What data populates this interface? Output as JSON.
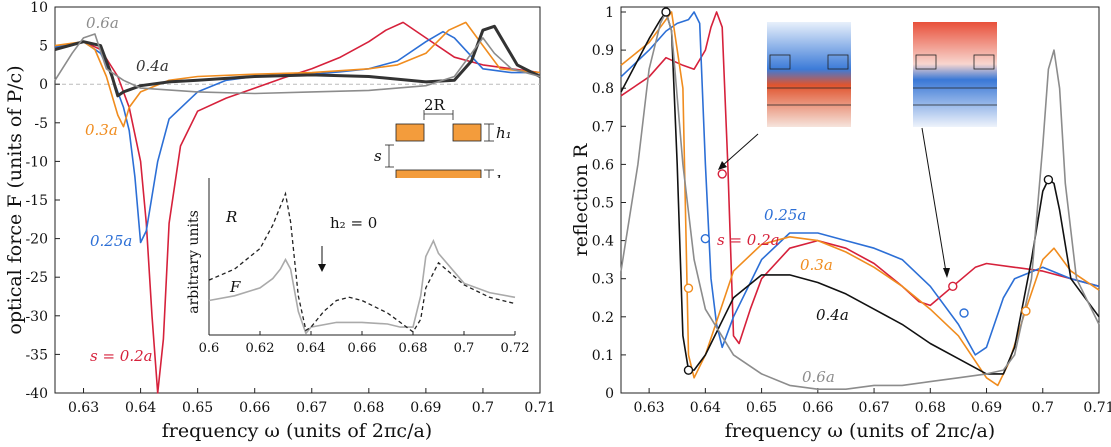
{
  "chart_data": [
    {
      "type": "line",
      "title": "",
      "xlabel": "frequency ω (units of 2πc/a)",
      "ylabel": "optical force  F (units of P/c)",
      "xlim": [
        0.625,
        0.71
      ],
      "ylim": [
        -40,
        10
      ],
      "xticks": [
        0.63,
        0.64,
        0.65,
        0.66,
        0.67,
        0.68,
        0.69,
        0.7,
        0.71
      ],
      "xtick_labels": [
        "0.63",
        "0.64",
        "0.65",
        "0.66",
        "0.67",
        "0.68",
        "0.69",
        "0.7",
        "0.71"
      ],
      "yticks": [
        10,
        5,
        0,
        -5,
        -10,
        -15,
        -20,
        -25,
        -30,
        -35,
        -40
      ],
      "ytick_labels": [
        "10",
        "5",
        "0",
        "-5",
        "-10",
        "-15",
        "-20",
        "-25",
        "-30",
        "-35",
        "-40"
      ],
      "series": [
        {
          "name": "s = 0.2a",
          "label": "s = 0.2a",
          "color": "#d6213b",
          "x": [
            0.625,
            0.63,
            0.633,
            0.636,
            0.638,
            0.64,
            0.641,
            0.642,
            0.643,
            0.644,
            0.645,
            0.647,
            0.65,
            0.655,
            0.66,
            0.665,
            0.67,
            0.675,
            0.68,
            0.683,
            0.686,
            0.69,
            0.695,
            0.7,
            0.705,
            0.71
          ],
          "y": [
            4.5,
            5.5,
            4.5,
            1.0,
            -3.0,
            -10.0,
            -18.0,
            -30.0,
            -40.0,
            -33.0,
            -18.0,
            -8.0,
            -3.5,
            -1.8,
            -0.5,
            0.8,
            2.0,
            3.5,
            5.5,
            7.0,
            8.0,
            6.0,
            3.5,
            2.5,
            2.0,
            1.5
          ]
        },
        {
          "name": "s = 0.25a",
          "label": "0.25a",
          "color": "#2c6fd6",
          "x": [
            0.625,
            0.63,
            0.633,
            0.635,
            0.637,
            0.638,
            0.639,
            0.64,
            0.641,
            0.643,
            0.645,
            0.65,
            0.655,
            0.66,
            0.665,
            0.67,
            0.675,
            0.68,
            0.685,
            0.69,
            0.693,
            0.695,
            0.7,
            0.705,
            0.71
          ],
          "y": [
            4.8,
            5.5,
            4.0,
            1.0,
            -3.0,
            -6.0,
            -12.0,
            -20.5,
            -19.0,
            -10.0,
            -4.5,
            -1.0,
            0.5,
            1.0,
            1.2,
            1.3,
            1.6,
            2.0,
            3.0,
            5.5,
            6.8,
            6.0,
            2.0,
            1.5,
            1.5
          ]
        },
        {
          "name": "s = 0.3a",
          "label": "0.3a",
          "color": "#f08c1e",
          "x": [
            0.625,
            0.63,
            0.632,
            0.634,
            0.636,
            0.637,
            0.638,
            0.64,
            0.645,
            0.65,
            0.66,
            0.67,
            0.68,
            0.685,
            0.69,
            0.694,
            0.697,
            0.7,
            0.703,
            0.71
          ],
          "y": [
            5.0,
            5.5,
            4.5,
            1.0,
            -4.0,
            -5.5,
            -3.0,
            -1.0,
            0.5,
            1.0,
            1.3,
            1.5,
            2.0,
            2.5,
            4.0,
            7.0,
            8.0,
            5.0,
            2.0,
            1.5
          ]
        },
        {
          "name": "s = 0.4a",
          "label": "0.4a",
          "color": "#333333",
          "x": [
            0.625,
            0.63,
            0.633,
            0.635,
            0.636,
            0.637,
            0.64,
            0.645,
            0.65,
            0.66,
            0.67,
            0.68,
            0.69,
            0.695,
            0.698,
            0.7,
            0.702,
            0.704,
            0.706,
            0.71
          ],
          "y": [
            4.5,
            5.5,
            5.0,
            1.0,
            -1.5,
            -1.0,
            -0.2,
            0.3,
            0.5,
            1.0,
            1.2,
            1.0,
            0.3,
            0.5,
            3.0,
            7.0,
            7.5,
            5.0,
            2.5,
            1.0
          ]
        },
        {
          "name": "s = 0.6a",
          "label": "0.6a",
          "color": "#8c8c8c",
          "x": [
            0.625,
            0.628,
            0.63,
            0.632,
            0.634,
            0.637,
            0.64,
            0.65,
            0.66,
            0.67,
            0.68,
            0.69,
            0.695,
            0.698,
            0.7,
            0.702,
            0.705,
            0.71
          ],
          "y": [
            0.5,
            4.0,
            6.0,
            6.5,
            2.0,
            0.5,
            -0.5,
            -1.0,
            -1.2,
            -1.0,
            -0.8,
            -0.2,
            1.0,
            4.0,
            6.0,
            4.0,
            2.0,
            1.0
          ]
        }
      ],
      "annotations": [
        "0.6a",
        "0.4a",
        "0.3a",
        "0.25a",
        "s = 0.2a"
      ],
      "inset": {
        "xlim": [
          0.6,
          0.72
        ],
        "xticks": [
          0.6,
          0.62,
          0.64,
          0.66,
          0.68,
          0.7,
          0.72
        ],
        "xtick_labels": [
          "0.6",
          "0.62",
          "0.64",
          "0.66",
          "0.68",
          "0.7",
          "0.72"
        ],
        "ylabel": "arbitrary units",
        "label_R": "R",
        "label_F": "F",
        "condition": "h₂ = 0",
        "R": {
          "x": [
            0.6,
            0.61,
            0.62,
            0.625,
            0.628,
            0.63,
            0.632,
            0.635,
            0.638,
            0.64,
            0.645,
            0.65,
            0.655,
            0.66,
            0.67,
            0.675,
            0.68,
            0.683,
            0.685,
            0.69,
            0.7,
            0.71,
            0.72
          ],
          "y": [
            0.35,
            0.42,
            0.55,
            0.7,
            0.82,
            0.9,
            0.72,
            0.25,
            0.03,
            0.05,
            0.15,
            0.22,
            0.24,
            0.22,
            0.14,
            0.08,
            0.02,
            0.1,
            0.3,
            0.46,
            0.32,
            0.24,
            0.2
          ]
        },
        "F": {
          "x": [
            0.6,
            0.61,
            0.62,
            0.625,
            0.628,
            0.63,
            0.632,
            0.635,
            0.638,
            0.64,
            0.65,
            0.66,
            0.67,
            0.675,
            0.68,
            0.683,
            0.685,
            0.688,
            0.69,
            0.7,
            0.71,
            0.72
          ],
          "y": [
            0.22,
            0.25,
            0.3,
            0.36,
            0.42,
            0.48,
            0.42,
            0.15,
            0.01,
            0.05,
            0.08,
            0.08,
            0.07,
            0.05,
            0.05,
            0.25,
            0.5,
            0.6,
            0.52,
            0.33,
            0.27,
            0.24
          ]
        }
      },
      "schematic": {
        "width_label": "2R",
        "h1_label": "h₁",
        "h2_label": "h₂",
        "s_label": "s",
        "fill_color": "#f39c3c"
      }
    },
    {
      "type": "line",
      "title": "",
      "xlabel": "frequency ω (units of 2πc/a)",
      "ylabel": "reflection R",
      "xlim": [
        0.625,
        0.71
      ],
      "ylim": [
        0,
        1
      ],
      "xticks": [
        0.63,
        0.64,
        0.65,
        0.66,
        0.67,
        0.68,
        0.69,
        0.7,
        0.71
      ],
      "xtick_labels": [
        "0.63",
        "0.64",
        "0.65",
        "0.66",
        "0.67",
        "0.68",
        "0.69",
        "0.7",
        "0.71"
      ],
      "yticks": [
        0,
        0.1,
        0.2,
        0.3,
        0.4,
        0.5,
        0.6,
        0.7,
        0.8,
        0.9,
        1
      ],
      "ytick_labels": [
        "0",
        "0.1",
        "0.2",
        "0.3",
        "0.4",
        "0.5",
        "0.6",
        "0.7",
        "0.8",
        "0.9",
        "1"
      ],
      "series": [
        {
          "name": "s = 0.2a",
          "label": "s = 0.2a",
          "color": "#d6213b",
          "x": [
            0.625,
            0.63,
            0.633,
            0.636,
            0.638,
            0.64,
            0.641,
            0.642,
            0.643,
            0.644,
            0.645,
            0.646,
            0.648,
            0.65,
            0.655,
            0.66,
            0.665,
            0.67,
            0.675,
            0.678,
            0.68,
            0.684,
            0.688,
            0.69,
            0.695,
            0.7,
            0.705,
            0.71
          ],
          "y": [
            0.78,
            0.83,
            0.88,
            0.86,
            0.85,
            0.9,
            0.96,
            1.0,
            0.96,
            0.6,
            0.15,
            0.13,
            0.22,
            0.3,
            0.38,
            0.4,
            0.38,
            0.34,
            0.28,
            0.24,
            0.23,
            0.28,
            0.33,
            0.34,
            0.33,
            0.32,
            0.3,
            0.28
          ]
        },
        {
          "name": "s = 0.25a",
          "label": "0.25a",
          "color": "#2c6fd6",
          "x": [
            0.625,
            0.63,
            0.633,
            0.635,
            0.637,
            0.638,
            0.639,
            0.64,
            0.641,
            0.642,
            0.643,
            0.645,
            0.65,
            0.655,
            0.66,
            0.665,
            0.67,
            0.675,
            0.68,
            0.685,
            0.688,
            0.69,
            0.693,
            0.695,
            0.7,
            0.705,
            0.71
          ],
          "y": [
            0.83,
            0.9,
            0.95,
            0.97,
            0.98,
            1.0,
            0.97,
            0.6,
            0.3,
            0.18,
            0.12,
            0.2,
            0.35,
            0.42,
            0.42,
            0.4,
            0.38,
            0.35,
            0.28,
            0.18,
            0.1,
            0.12,
            0.25,
            0.3,
            0.33,
            0.3,
            0.28
          ]
        },
        {
          "name": "s = 0.3a",
          "label": "0.3a",
          "color": "#f08c1e",
          "x": [
            0.625,
            0.63,
            0.632,
            0.634,
            0.636,
            0.637,
            0.638,
            0.64,
            0.645,
            0.65,
            0.655,
            0.66,
            0.665,
            0.67,
            0.675,
            0.68,
            0.685,
            0.69,
            0.692,
            0.694,
            0.697,
            0.7,
            0.702,
            0.705,
            0.71
          ],
          "y": [
            0.86,
            0.92,
            0.96,
            1.0,
            0.8,
            0.1,
            0.04,
            0.1,
            0.32,
            0.39,
            0.41,
            0.4,
            0.37,
            0.33,
            0.28,
            0.22,
            0.15,
            0.04,
            0.02,
            0.08,
            0.22,
            0.35,
            0.38,
            0.32,
            0.27
          ]
        },
        {
          "name": "s = 0.4a",
          "label": "0.4a",
          "color": "#111111",
          "x": [
            0.625,
            0.63,
            0.632,
            0.633,
            0.634,
            0.635,
            0.636,
            0.637,
            0.638,
            0.64,
            0.645,
            0.65,
            0.655,
            0.66,
            0.665,
            0.67,
            0.675,
            0.68,
            0.685,
            0.69,
            0.693,
            0.695,
            0.698,
            0.7,
            0.701,
            0.702,
            0.703,
            0.705,
            0.71
          ],
          "y": [
            0.79,
            0.93,
            0.98,
            1.0,
            0.95,
            0.6,
            0.15,
            0.06,
            0.06,
            0.1,
            0.25,
            0.31,
            0.31,
            0.29,
            0.26,
            0.22,
            0.18,
            0.13,
            0.09,
            0.05,
            0.05,
            0.12,
            0.35,
            0.53,
            0.56,
            0.55,
            0.48,
            0.3,
            0.2
          ]
        },
        {
          "name": "s = 0.6a",
          "label": "0.6a",
          "color": "#8c8c8c",
          "x": [
            0.625,
            0.628,
            0.63,
            0.632,
            0.633,
            0.634,
            0.636,
            0.638,
            0.64,
            0.645,
            0.65,
            0.655,
            0.66,
            0.665,
            0.67,
            0.675,
            0.68,
            0.685,
            0.69,
            0.693,
            0.695,
            0.698,
            0.7,
            0.701,
            0.702,
            0.703,
            0.704,
            0.706,
            0.71
          ],
          "y": [
            0.32,
            0.6,
            0.85,
            0.97,
            1.0,
            0.95,
            0.6,
            0.35,
            0.22,
            0.1,
            0.05,
            0.02,
            0.01,
            0.01,
            0.02,
            0.02,
            0.03,
            0.04,
            0.05,
            0.06,
            0.1,
            0.3,
            0.65,
            0.85,
            0.9,
            0.8,
            0.55,
            0.3,
            0.18
          ]
        }
      ],
      "markers": [
        {
          "series": "s = 0.2a",
          "x": [
            0.643,
            0.684
          ],
          "y": [
            0.575,
            0.28
          ]
        },
        {
          "series": "s = 0.25a",
          "x": [
            0.64,
            0.686
          ],
          "y": [
            0.405,
            0.21
          ]
        },
        {
          "series": "s = 0.3a",
          "x": [
            0.637,
            0.697
          ],
          "y": [
            0.275,
            0.215
          ]
        },
        {
          "series": "s = 0.4a",
          "x": [
            0.633,
            0.637,
            0.701
          ],
          "y": [
            1.0,
            0.06,
            0.56
          ]
        }
      ],
      "annotations": [
        "s = 0.2a",
        "0.25a",
        "0.3a",
        "0.4a",
        "0.6a"
      ]
    }
  ]
}
